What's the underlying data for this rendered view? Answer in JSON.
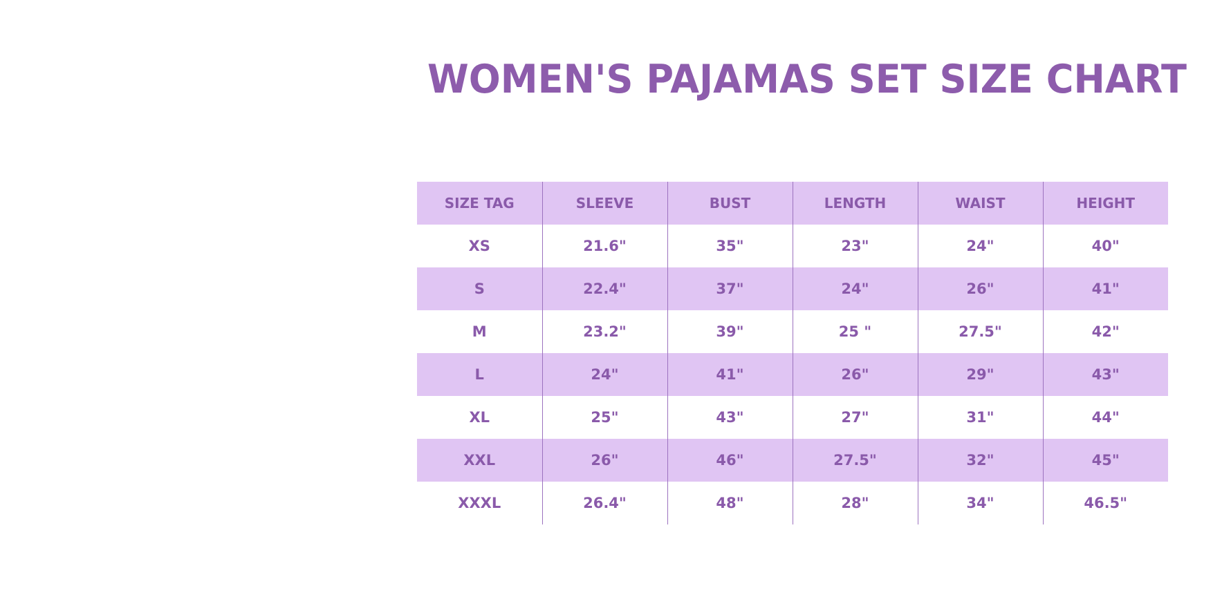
{
  "title": "WOMEN'S PAJAMAS SET SIZE CHART",
  "colors": {
    "accent": "#8d5cac",
    "row_shade": "#e0c5f3",
    "divider": "#9c72bf"
  },
  "table": {
    "headers": [
      "SIZE TAG",
      "SLEEVE",
      "BUST",
      "LENGTH",
      "WAIST",
      "HEIGHT"
    ],
    "rows": [
      [
        "XS",
        "21.6\"",
        "35\"",
        "23\"",
        "24\"",
        "40\""
      ],
      [
        "S",
        "22.4\"",
        "37\"",
        "24\"",
        "26\"",
        "41\""
      ],
      [
        "M",
        "23.2\"",
        "39\"",
        "25 \"",
        "27.5\"",
        "42\""
      ],
      [
        "L",
        "24\"",
        "41\"",
        "26\"",
        "29\"",
        "43\""
      ],
      [
        "XL",
        "25\"",
        "43\"",
        "27\"",
        "31\"",
        "44\""
      ],
      [
        "XXL",
        "26\"",
        "46\"",
        "27.5\"",
        "32\"",
        "45\""
      ],
      [
        "XXXL",
        "26.4\"",
        "48\"",
        "28\"",
        "34\"",
        "46.5\""
      ]
    ]
  }
}
